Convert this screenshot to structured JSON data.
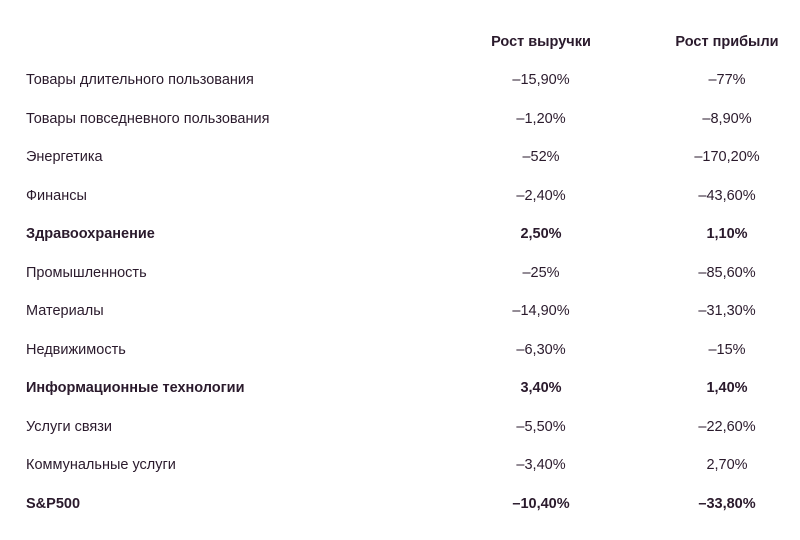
{
  "table": {
    "header": [
      "Рост выручки",
      "Рост прибыли"
    ],
    "rows": [
      {
        "cells": [
          "Товары длительного пользования",
          "–15,90%",
          "–77%"
        ]
      },
      {
        "cells": [
          "Товары повседневного пользования",
          "–1,20%",
          "–8,90%"
        ]
      },
      {
        "cells": [
          "Энергетика",
          "–52%",
          "–170,20%"
        ]
      },
      {
        "cells": [
          "Финансы",
          "–2,40%",
          "–43,60%"
        ]
      },
      {
        "cells": [
          "Здравоохранение",
          "2,50%",
          "1,10%"
        ],
        "bold": true
      },
      {
        "cells": [
          "Промышленность",
          "–25%",
          "–85,60%"
        ]
      },
      {
        "cells": [
          "Материалы",
          "–14,90%",
          "–31,30%"
        ]
      },
      {
        "cells": [
          "Недвижимость",
          "–6,30%",
          "–15%"
        ]
      },
      {
        "cells": [
          "Информационные технологии",
          "3,40%",
          "1,40%"
        ],
        "bold": true
      },
      {
        "cells": [
          "Услуги связи",
          "–5,50%",
          "–22,60%"
        ]
      },
      {
        "cells": [
          "Коммунальные услуги",
          "–3,40%",
          "2,70%"
        ]
      },
      {
        "cells": [
          "S&P500",
          "–10,40%",
          "–33,80%"
        ],
        "bold": true
      }
    ]
  }
}
